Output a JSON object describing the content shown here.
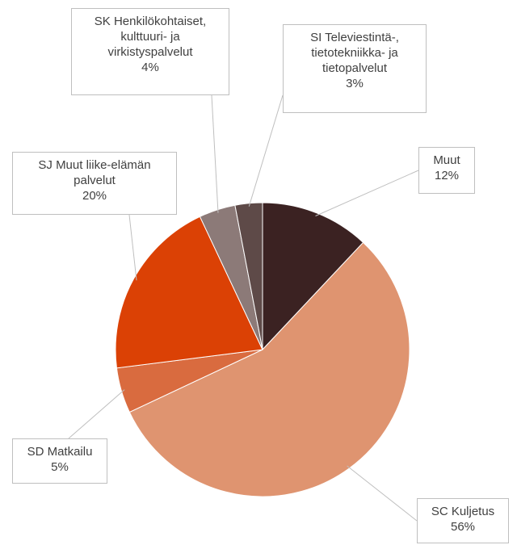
{
  "chart_data": {
    "type": "pie",
    "categories": [
      "Muut",
      "SC Kuljetus",
      "SD Matkailu",
      "SJ Muut liike-elämän\npalvelut",
      "SK Henkilökohtaiset,\nkulttuuri- ja\nvirkistyspalvelut",
      "SI Televiestintä-,\ntietotekniikka- ja\ntietopalvelut"
    ],
    "values": [
      12,
      56,
      5,
      20,
      4,
      3
    ],
    "value_labels": [
      "12%",
      "56%",
      "5%",
      "20%",
      "4%",
      "3%"
    ],
    "colors": [
      "#3b2222",
      "#df9470",
      "#d96b3f",
      "#db4105",
      "#8c7a78",
      "#5e4a48"
    ]
  }
}
